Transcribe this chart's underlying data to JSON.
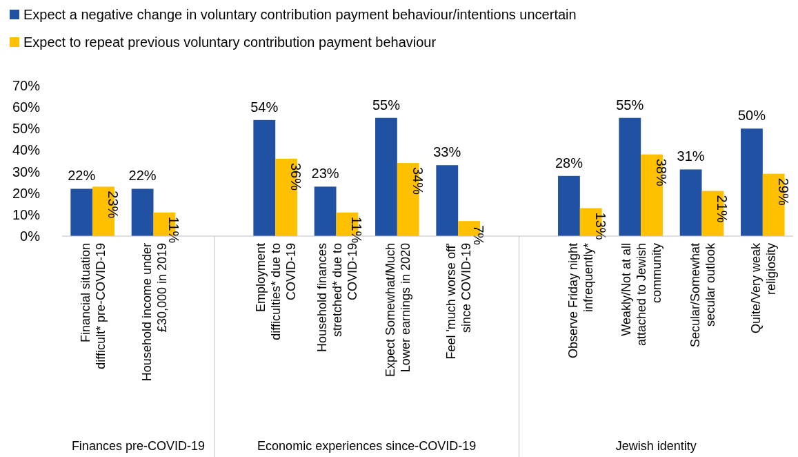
{
  "chart_data": {
    "type": "bar",
    "categories": [
      "Financial situation difficult* pre-COVID-19",
      "Household income under £30,000 in 2019",
      null,
      "Employment difficulties* due to COVID-19",
      "Household finances stretched* due to COVID-19",
      "Expect Somewhat/Much Lower earnings in 2020",
      "Feel 'much worse off' since COVID-19",
      null,
      "Observe Friday night infrequently*",
      "Weakly/Not at all attached to Jewish community",
      "Secular/Somewhat secular outlook",
      "Quite/Very weak religiosity"
    ],
    "series": [
      {
        "name": "Expect a negative change in voluntary contribution payment behaviour/intentions uncertain",
        "color": "#2151a3",
        "values": [
          22,
          22,
          null,
          54,
          23,
          55,
          33,
          null,
          28,
          55,
          31,
          50
        ],
        "value_labels": [
          "22%",
          "22%",
          null,
          "54%",
          "23%",
          "55%",
          "33%",
          null,
          "28%",
          "55%",
          "31%",
          "50%"
        ]
      },
      {
        "name": "Expect to repeat previous voluntary contribution payment behaviour",
        "color": "#ffc000",
        "values": [
          23,
          11,
          null,
          36,
          11,
          34,
          7,
          null,
          13,
          38,
          21,
          29
        ],
        "value_labels": [
          "23%",
          "11%",
          null,
          "36%",
          "11%",
          "34%",
          "7%",
          null,
          "13%",
          "38%",
          "21%",
          "29%"
        ]
      }
    ],
    "ylim": [
      0,
      70
    ],
    "yticks": [
      {
        "value": 0,
        "label": "0%"
      },
      {
        "value": 10,
        "label": "10%"
      },
      {
        "value": 20,
        "label": "20%"
      },
      {
        "value": 30,
        "label": "30%"
      },
      {
        "value": 40,
        "label": "40%"
      },
      {
        "value": 50,
        "label": "50%"
      },
      {
        "value": 60,
        "label": "60%"
      },
      {
        "value": 70,
        "label": "70%"
      }
    ],
    "legend": "top left",
    "annotations": [
      "Finances pre-COVID-19",
      "Economic experiences since-COVID-19",
      "Jewish identity"
    ]
  }
}
